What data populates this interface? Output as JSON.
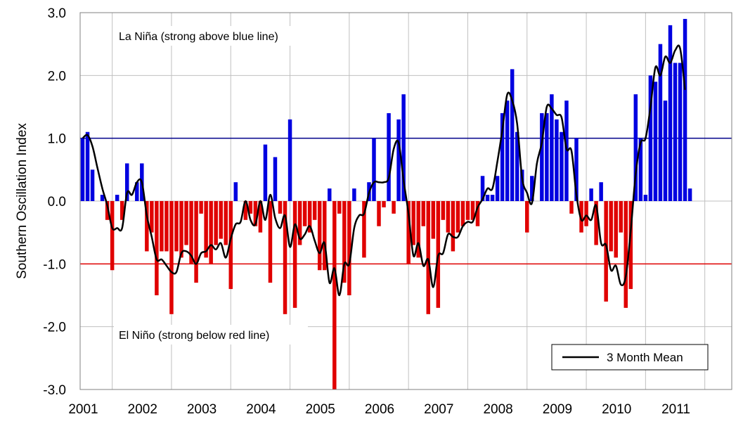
{
  "chart_data": {
    "type": "bar",
    "title": "",
    "ylabel": "Southern Oscillation Index",
    "xlabel": "",
    "ylim": [
      -3,
      3
    ],
    "y_ticks": [
      "3.0",
      "2.0",
      "1.0",
      "0.0",
      "-1.0",
      "-2.0",
      "-3.0"
    ],
    "x_tick_labels": [
      "2001",
      "2002",
      "2003",
      "2004",
      "2005",
      "2006",
      "2007",
      "2008",
      "2009",
      "2010",
      "2011"
    ],
    "x_range": [
      "2000-07",
      "2011-06"
    ],
    "grid": true,
    "start_month": "2000-07",
    "colors": {
      "positive": "#0000e0",
      "negative": "#e00000",
      "mean_line": "#000000",
      "grid": "#c0c0c0"
    },
    "reference_lines": [
      {
        "value": 1.0,
        "color": "#00008b"
      },
      {
        "value": -1.0,
        "color": "#e00000"
      }
    ],
    "annotations": {
      "la_nina": "La Niña (strong above blue line)",
      "el_nino": "El Niño (strong below red line)"
    },
    "legend": {
      "position": "bottom-right",
      "entries": [
        "3 Month Mean"
      ]
    },
    "monthly_soi": [
      1.0,
      1.1,
      0.5,
      0.0,
      0.1,
      -0.3,
      -1.1,
      0.1,
      -0.3,
      0.6,
      0.0,
      0.3,
      0.6,
      -0.8,
      -0.5,
      -1.5,
      -0.8,
      -0.8,
      -1.8,
      -0.8,
      -0.9,
      -0.7,
      -1.0,
      -1.3,
      -0.2,
      -0.9,
      -1.0,
      -0.7,
      -0.6,
      -0.7,
      -1.4,
      0.3,
      0.0,
      -0.3,
      -0.2,
      -0.4,
      -0.5,
      0.9,
      -1.3,
      0.7,
      -0.2,
      -1.8,
      1.3,
      -1.7,
      -0.7,
      -0.4,
      -0.5,
      -0.3,
      -1.1,
      -1.1,
      0.2,
      -3.0,
      -0.2,
      -1.3,
      -1.5,
      0.2,
      0.0,
      -0.9,
      0.3,
      1.0,
      -0.4,
      -0.1,
      1.4,
      -0.2,
      1.3,
      1.7,
      -1.0,
      -0.7,
      -0.9,
      -0.4,
      -1.8,
      -0.6,
      -1.7,
      -0.3,
      -0.5,
      -0.8,
      -0.5,
      -0.4,
      -0.3,
      -0.3,
      -0.4,
      0.4,
      0.1,
      0.1,
      0.4,
      1.4,
      1.6,
      2.1,
      1.1,
      0.5,
      -0.5,
      0.4,
      0.0,
      1.4,
      1.4,
      1.7,
      1.3,
      1.1,
      1.6,
      -0.2,
      1.0,
      -0.5,
      -0.4,
      0.2,
      -0.7,
      0.3,
      -1.6,
      -0.8,
      -0.9,
      -0.5,
      -1.7,
      -1.4,
      1.7,
      1.0,
      0.1,
      2.0,
      1.9,
      2.5,
      1.6,
      2.8,
      2.2,
      2.2,
      2.9,
      0.2
    ],
    "three_month_mean": [
      1.0,
      1.05,
      0.87,
      0.53,
      0.2,
      -0.07,
      -0.43,
      -0.43,
      -0.43,
      0.13,
      0.1,
      0.3,
      0.3,
      -0.23,
      -0.57,
      -0.93,
      -0.93,
      -1.03,
      -1.13,
      -1.13,
      -0.83,
      -0.8,
      -0.87,
      -1.0,
      -0.83,
      -0.8,
      -0.7,
      -0.77,
      -0.67,
      -0.9,
      -0.6,
      -0.37,
      -0.33,
      0.0,
      -0.3,
      -0.37,
      0.0,
      -0.3,
      0.1,
      -0.27,
      -0.43,
      -0.23,
      -0.73,
      -0.37,
      -0.6,
      -0.53,
      -0.4,
      -0.63,
      -0.83,
      -0.67,
      -1.3,
      -1.07,
      -1.5,
      -1.0,
      -1.0,
      -0.43,
      -0.23,
      -0.2,
      0.13,
      0.3,
      0.3,
      0.3,
      0.37,
      0.83,
      0.93,
      0.33,
      -0.2,
      -0.87,
      -0.67,
      -1.03,
      -0.93,
      -1.37,
      -0.87,
      -0.83,
      -0.53,
      -0.57,
      -0.57,
      -0.4,
      -0.33,
      -0.33,
      -0.1,
      0.03,
      0.2,
      0.2,
      0.63,
      1.13,
      1.7,
      1.6,
      1.23,
      0.37,
      0.13,
      -0.03,
      0.6,
      0.93,
      1.5,
      1.47,
      1.37,
      1.33,
      0.83,
      0.8,
      0.1,
      -0.3,
      -0.23,
      -0.3,
      -0.07,
      -0.67,
      -0.7,
      -1.1,
      -1.03,
      -1.33,
      -1.2,
      -0.47,
      0.43,
      0.93,
      1.0,
      1.5,
      2.13,
      2.0,
      2.3,
      2.2,
      2.4,
      2.43,
      1.77
    ]
  }
}
